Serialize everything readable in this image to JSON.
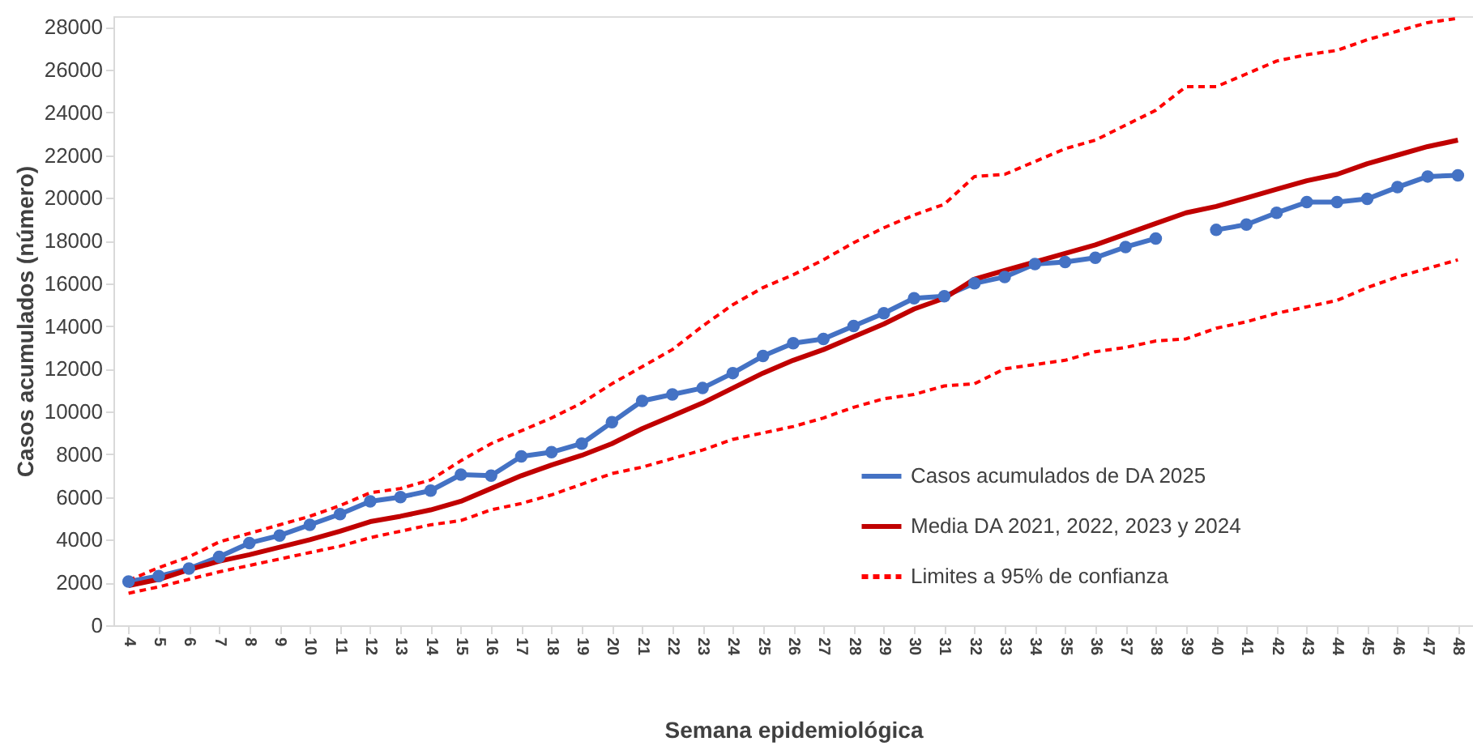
{
  "chart_data": {
    "type": "line",
    "xlabel": "Semana epidemiológica",
    "ylabel": "Casos acumulados (número)",
    "categories": [
      "4",
      "5",
      "6",
      "7",
      "8",
      "9",
      "10",
      "11",
      "12",
      "13",
      "14",
      "15",
      "16",
      "17",
      "18",
      "19",
      "20",
      "21",
      "22",
      "23",
      "24",
      "25",
      "26",
      "27",
      "28",
      "29",
      "30",
      "31",
      "32",
      "33",
      "34",
      "35",
      "36",
      "37",
      "38",
      "39",
      "40",
      "41",
      "42",
      "43",
      "44",
      "45",
      "46",
      "47",
      "48"
    ],
    "series": [
      {
        "name": "Casos acumulados de DA 2025",
        "color": "#4472c4",
        "line_style": "solid",
        "marker": "circle",
        "values": [
          2050,
          2300,
          2650,
          3200,
          3850,
          4200,
          4700,
          5200,
          5800,
          6000,
          6300,
          7050,
          7000,
          7900,
          8100,
          8500,
          9500,
          10500,
          10800,
          11100,
          11800,
          12600,
          13200,
          13400,
          14000,
          14600,
          15300,
          15400,
          16000,
          16300,
          16900,
          17000,
          17200,
          17700,
          18100,
          null,
          18500,
          18750,
          19300,
          19800,
          19800,
          19950,
          20500,
          21000,
          21050
        ]
      },
      {
        "name": "Media DA 2021, 2022, 2023 y 2024",
        "color": "#c00000",
        "line_style": "solid",
        "marker": "none",
        "values": [
          1850,
          2150,
          2600,
          3000,
          3300,
          3650,
          4000,
          4400,
          4850,
          5100,
          5400,
          5800,
          6400,
          7000,
          7500,
          7950,
          8500,
          9200,
          9800,
          10400,
          11100,
          11800,
          12400,
          12900,
          13500,
          14100,
          14800,
          15300,
          16200,
          16600,
          17000,
          17400,
          17800,
          18300,
          18800,
          19300,
          19600,
          20000,
          20400,
          20800,
          21100,
          21600,
          22000,
          22400,
          22700
        ]
      },
      {
        "name": "Limites a 95% de confianza",
        "color": "#ff0000",
        "line_style": "dashed",
        "marker": "none",
        "values": [
          2100,
          2700,
          3200,
          3900,
          4300,
          4700,
          5100,
          5600,
          6200,
          6400,
          6800,
          7700,
          8500,
          9100,
          9700,
          10400,
          11300,
          12100,
          12900,
          14000,
          15000,
          15800,
          16400,
          17100,
          17900,
          18600,
          19200,
          19700,
          21000,
          21100,
          21700,
          22300,
          22700,
          23400,
          24100,
          25200,
          25200,
          25800,
          26400,
          26700,
          26900,
          27400,
          27800,
          28200,
          28400
        ]
      },
      {
        "color": "#ff0000",
        "line_style": "dashed",
        "marker": "none",
        "values": [
          1500,
          1800,
          2150,
          2500,
          2800,
          3100,
          3400,
          3700,
          4100,
          4400,
          4700,
          4900,
          5400,
          5700,
          6100,
          6600,
          7100,
          7400,
          7800,
          8200,
          8700,
          9000,
          9300,
          9700,
          10200,
          10600,
          10800,
          11200,
          11300,
          12000,
          12200,
          12400,
          12800,
          13000,
          13300,
          13400,
          13900,
          14200,
          14600,
          14900,
          15200,
          15800,
          16300,
          16700,
          17100
        ]
      }
    ],
    "ylim": [
      0,
      28500
    ],
    "yticks": [
      0,
      2000,
      4000,
      6000,
      8000,
      10000,
      12000,
      14000,
      16000,
      18000,
      20000,
      22000,
      24000,
      26000,
      28000
    ],
    "grid": false,
    "legend": "bottom right"
  }
}
